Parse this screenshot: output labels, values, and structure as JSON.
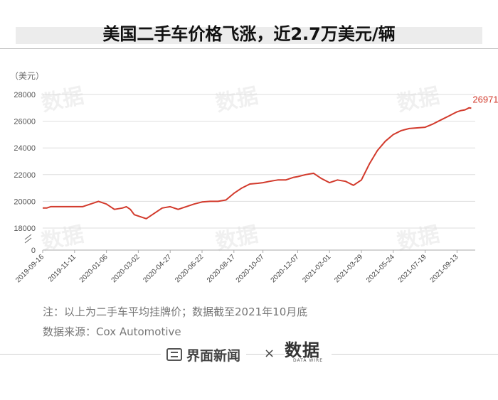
{
  "header": {
    "title": "美国二手车价格飞涨，近2.7万美元/辆"
  },
  "chart_data": {
    "type": "line",
    "ylabel": "（美元）",
    "yticks": [
      0,
      18000,
      20000,
      22000,
      24000,
      26000,
      28000
    ],
    "ylim": [
      17000,
      28500
    ],
    "axis_break": true,
    "xtick_labels": [
      "2019-09-16",
      "2019-11-11",
      "2020-01-06",
      "2020-03-02",
      "2020-04-27",
      "2020-06-22",
      "2020-08-17",
      "2020-10-07",
      "2020-12-07",
      "2021-02-01",
      "2021-03-29",
      "2021-05-24",
      "2021-07-19",
      "2021-09-13"
    ],
    "series": [
      {
        "color": "#d23a2c",
        "x": [
          "2019-09-16",
          "2019-09-23",
          "2019-09-30",
          "2019-10-14",
          "2019-11-11",
          "2019-11-25",
          "2019-12-09",
          "2019-12-23",
          "2020-01-06",
          "2020-01-20",
          "2020-02-03",
          "2020-02-10",
          "2020-02-17",
          "2020-02-24",
          "2020-03-02",
          "2020-03-16",
          "2020-03-30",
          "2020-04-13",
          "2020-04-27",
          "2020-05-11",
          "2020-05-25",
          "2020-06-08",
          "2020-06-22",
          "2020-07-06",
          "2020-07-20",
          "2020-08-03",
          "2020-08-17",
          "2020-08-31",
          "2020-09-14",
          "2020-09-28",
          "2020-10-07",
          "2020-10-19",
          "2020-11-02",
          "2020-11-16",
          "2020-11-30",
          "2020-12-07",
          "2020-12-21",
          "2021-01-04",
          "2021-01-18",
          "2021-02-01",
          "2021-02-08",
          "2021-02-15",
          "2021-02-22",
          "2021-03-01",
          "2021-03-08",
          "2021-03-15",
          "2021-03-29",
          "2021-04-12",
          "2021-04-26",
          "2021-05-10",
          "2021-05-24",
          "2021-06-07",
          "2021-06-21",
          "2021-07-05",
          "2021-07-19",
          "2021-08-02",
          "2021-08-16",
          "2021-08-30",
          "2021-09-13",
          "2021-09-20",
          "2021-09-27",
          "2021-10-04",
          "2021-10-08"
        ],
        "y": [
          19500,
          19500,
          19600,
          19600,
          19600,
          19600,
          19800,
          20000,
          19800,
          19400,
          19500,
          19600,
          19400,
          19000,
          18900,
          18700,
          19100,
          19500,
          19600,
          19400,
          19600,
          19800,
          19950,
          20000,
          20000,
          20100,
          20600,
          21000,
          21300,
          21350,
          21400,
          21500,
          21600,
          21600,
          21800,
          21850,
          22000,
          22100,
          21700,
          21400,
          21500,
          21600,
          21550,
          21500,
          21350,
          21200,
          21600,
          22800,
          23800,
          24500,
          25000,
          25300,
          25450,
          25500,
          25550,
          25800,
          26100,
          26400,
          26700,
          26800,
          26850,
          27000,
          26971
        ]
      }
    ],
    "annotations": [
      {
        "text": "26971",
        "x": "2021-10-08",
        "y": 26971,
        "color": "#d23a2c"
      }
    ]
  },
  "notes": {
    "line1": "注：以上为二手车平均挂牌价；数据截至2021年10月底",
    "line2": "数据来源：Cox Automotive"
  },
  "footer": {
    "brand1": "界面新闻",
    "times": "×",
    "brand2_big": "数据",
    "brand2_small": "DATA WIRE"
  },
  "watermark": {
    "text": "数据"
  }
}
